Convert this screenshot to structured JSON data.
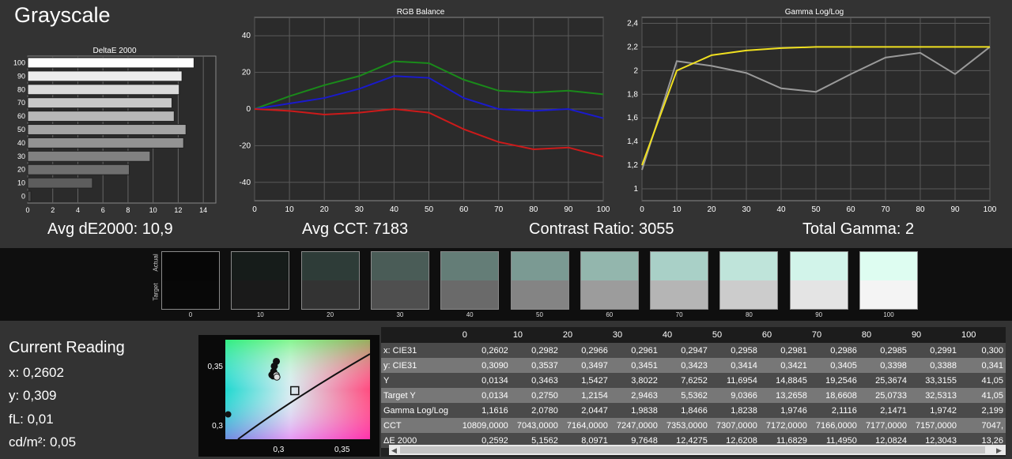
{
  "title": "Grayscale",
  "stats": {
    "avg_de": "Avg dE2000: 10,9",
    "avg_cct": "Avg CCT: 7183",
    "contrast": "Contrast Ratio: 3055",
    "gamma": "Total Gamma: 2"
  },
  "swatch_labels": {
    "actual": "Actual",
    "target": "Target"
  },
  "swatches": [
    {
      "level": "0",
      "actual": "#060606",
      "target": "#080808"
    },
    {
      "level": "10",
      "actual": "#161c1a",
      "target": "#1a1a1a"
    },
    {
      "level": "20",
      "actual": "#2e3c38",
      "target": "#333333"
    },
    {
      "level": "30",
      "actual": "#4a5c57",
      "target": "#4f4f4f"
    },
    {
      "level": "40",
      "actual": "#647d77",
      "target": "#6a6a6a"
    },
    {
      "level": "50",
      "actual": "#7b9a93",
      "target": "#848484"
    },
    {
      "level": "60",
      "actual": "#93b6ad",
      "target": "#9c9c9c"
    },
    {
      "level": "70",
      "actual": "#a9d0c7",
      "target": "#b5b5b5"
    },
    {
      "level": "80",
      "actual": "#bfe4da",
      "target": "#cccccc"
    },
    {
      "level": "90",
      "actual": "#d2f4ea",
      "target": "#e4e4e4"
    },
    {
      "level": "100",
      "actual": "#defdf1",
      "target": "#f4f4f4"
    }
  ],
  "reading": {
    "heading": "Current Reading",
    "x": "x: 0,2602",
    "y": "y: 0,309",
    "fl": "fL: 0,01",
    "cdm2": "cd/m²: 0,05"
  },
  "table": {
    "header": [
      "",
      "0",
      "10",
      "20",
      "30",
      "40",
      "50",
      "60",
      "70",
      "80",
      "90",
      "100"
    ],
    "rows": [
      {
        "label": "x: CIE31",
        "values": [
          "0,2602",
          "0,2982",
          "0,2966",
          "0,2961",
          "0,2947",
          "0,2958",
          "0,2981",
          "0,2986",
          "0,2985",
          "0,2991",
          "0,300"
        ]
      },
      {
        "label": "y: CIE31",
        "values": [
          "0,3090",
          "0,3537",
          "0,3497",
          "0,3451",
          "0,3423",
          "0,3414",
          "0,3421",
          "0,3405",
          "0,3398",
          "0,3388",
          "0,341"
        ]
      },
      {
        "label": "Y",
        "values": [
          "0,0134",
          "0,3463",
          "1,5427",
          "3,8022",
          "7,6252",
          "11,6954",
          "14,8845",
          "19,2546",
          "25,3674",
          "33,3155",
          "41,05"
        ]
      },
      {
        "label": "Target Y",
        "values": [
          "0,0134",
          "0,2750",
          "1,2154",
          "2,9463",
          "5,5362",
          "9,0366",
          "13,2658",
          "18,6608",
          "25,0733",
          "32,5313",
          "41,05"
        ]
      },
      {
        "label": "Gamma Log/Log",
        "values": [
          "1,1616",
          "2,0780",
          "2,0447",
          "1,9838",
          "1,8466",
          "1,8238",
          "1,9746",
          "2,1116",
          "2,1471",
          "1,9742",
          "2,199"
        ]
      },
      {
        "label": "CCT",
        "values": [
          "10809,0000",
          "7043,0000",
          "7164,0000",
          "7247,0000",
          "7353,0000",
          "7307,0000",
          "7172,0000",
          "7166,0000",
          "7177,0000",
          "7157,0000",
          "7047,"
        ]
      },
      {
        "label": "ΔE 2000",
        "values": [
          "0,2592",
          "5,1562",
          "8,0971",
          "9,7648",
          "12,4275",
          "12,6208",
          "11,6829",
          "11,4950",
          "12,0824",
          "12,3043",
          "13,26"
        ]
      }
    ]
  },
  "chart_data": [
    {
      "type": "bar",
      "title": "DeltaE 2000",
      "orientation": "horizontal",
      "categories": [
        "100",
        "90",
        "80",
        "70",
        "60",
        "50",
        "40",
        "30",
        "20",
        "10",
        "0"
      ],
      "values": [
        13.26,
        12.3,
        12.08,
        11.5,
        11.68,
        12.62,
        12.43,
        9.76,
        8.1,
        5.16,
        0.26
      ],
      "xlim": [
        0,
        15
      ],
      "xticks": [
        "0",
        "2",
        "4",
        "6",
        "8",
        "10",
        "12",
        "14"
      ],
      "grid": true
    },
    {
      "type": "line",
      "title": "RGB Balance",
      "x": [
        0,
        10,
        20,
        30,
        40,
        50,
        60,
        70,
        80,
        90,
        100
      ],
      "xticks": [
        "0",
        "10",
        "20",
        "30",
        "40",
        "50",
        "60",
        "70",
        "80",
        "90",
        "100"
      ],
      "yticks": [
        "40",
        "20",
        "0",
        "-20",
        "-40"
      ],
      "ylim": [
        -50,
        50
      ],
      "series": [
        {
          "color": "#1a8a1a",
          "values": [
            0,
            7,
            13,
            18,
            26,
            25,
            16,
            10,
            9,
            10,
            8
          ]
        },
        {
          "color": "#1a1acc",
          "values": [
            0,
            3,
            6,
            11,
            18,
            17,
            6,
            0,
            -1,
            0,
            -5
          ]
        },
        {
          "color": "#cc1a1a",
          "values": [
            0,
            -1,
            -3,
            -2,
            0,
            -2,
            -11,
            -18,
            -22,
            -21,
            -26
          ]
        }
      ]
    },
    {
      "type": "line",
      "title": "Gamma Log/Log",
      "x": [
        0,
        10,
        20,
        30,
        40,
        50,
        60,
        70,
        80,
        90,
        100
      ],
      "xticks": [
        "0",
        "10",
        "20",
        "30",
        "40",
        "50",
        "60",
        "70",
        "80",
        "90",
        "100"
      ],
      "yticks": [
        "2,4",
        "2,2",
        "2",
        "1,8",
        "1,6",
        "1,4",
        "1,2",
        "1"
      ],
      "ylim": [
        0.9,
        2.45
      ],
      "series": [
        {
          "color": "#9a9a9a",
          "values": [
            1.16,
            2.08,
            2.04,
            1.98,
            1.85,
            1.82,
            1.97,
            2.11,
            2.15,
            1.97,
            2.2
          ]
        },
        {
          "color": "#f0e020",
          "values": [
            1.2,
            2.0,
            2.13,
            2.17,
            2.19,
            2.2,
            2.2,
            2.2,
            2.2,
            2.2,
            2.2
          ]
        }
      ]
    },
    {
      "type": "scatter",
      "title": "",
      "xticks": [
        "0,3",
        "0,35"
      ],
      "yticks": [
        "0,35",
        "0,3"
      ],
      "xlim": [
        0.258,
        0.372
      ],
      "ylim": [
        0.288,
        0.372
      ],
      "points": [
        {
          "x": 0.2602,
          "y": 0.309
        },
        {
          "x": 0.2982,
          "y": 0.3537
        },
        {
          "x": 0.2966,
          "y": 0.3497
        },
        {
          "x": 0.2961,
          "y": 0.3451
        },
        {
          "x": 0.2947,
          "y": 0.3423
        },
        {
          "x": 0.2958,
          "y": 0.3414
        },
        {
          "x": 0.2981,
          "y": 0.3421
        },
        {
          "x": 0.2986,
          "y": 0.3405
        }
      ],
      "target": {
        "x": 0.3127,
        "y": 0.329
      }
    }
  ]
}
